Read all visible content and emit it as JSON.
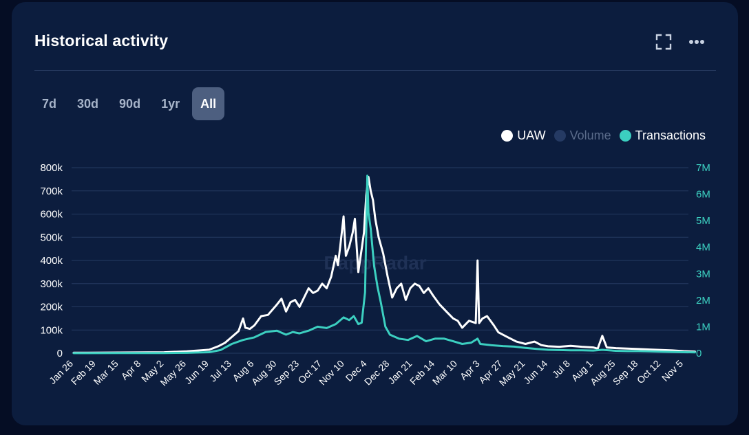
{
  "header": {
    "title": "Historical activity"
  },
  "icons": {
    "expand": "expand-icon",
    "more": "more-options-icon"
  },
  "tabs": [
    {
      "label": "7d",
      "active": false
    },
    {
      "label": "30d",
      "active": false
    },
    {
      "label": "90d",
      "active": false
    },
    {
      "label": "1yr",
      "active": false
    },
    {
      "label": "All",
      "active": true
    }
  ],
  "legend": [
    {
      "label": "UAW",
      "color": "#ffffff",
      "text_color": "#ffffff",
      "active": true
    },
    {
      "label": "Volume",
      "color": "#253a63",
      "text_color": "#5a6b8a",
      "active": false
    },
    {
      "label": "Transactions",
      "color": "#3ccfc0",
      "text_color": "#ffffff",
      "active": true
    }
  ],
  "watermark": "DappRadar",
  "chart_data": {
    "type": "line",
    "x_ticks": [
      "Jan 26",
      "Feb 19",
      "Mar 15",
      "Apr 8",
      "May 2",
      "May 26",
      "Jun 19",
      "Jul 13",
      "Aug 6",
      "Aug 30",
      "Sep 23",
      "Oct 17",
      "Nov 10",
      "Dec 4",
      "Dec 28",
      "Jan 21",
      "Feb 14",
      "Mar 10",
      "Apr 3",
      "Apr 27",
      "May 21",
      "Jun 14",
      "Jul 8",
      "Aug 1",
      "Aug 25",
      "Sep 18",
      "Oct 12",
      "Nov 5"
    ],
    "y_left": {
      "ticks": [
        "0",
        "100k",
        "200k",
        "300k",
        "400k",
        "500k",
        "600k",
        "700k",
        "800k"
      ],
      "range": [
        0,
        800000
      ]
    },
    "y_right": {
      "ticks": [
        "0",
        "1M",
        "2M",
        "3M",
        "4M",
        "5M",
        "6M",
        "7M"
      ],
      "range": [
        0,
        7000000
      ]
    },
    "grid": true,
    "legend_position": "top-right",
    "series": [
      {
        "name": "UAW",
        "axis": "left",
        "color": "#ffffff",
        "points": [
          [
            0,
            2000
          ],
          [
            2,
            3000
          ],
          [
            4,
            4000
          ],
          [
            5,
            8000
          ],
          [
            6,
            15000
          ],
          [
            6.4,
            30000
          ],
          [
            6.7,
            45000
          ],
          [
            7,
            70000
          ],
          [
            7.3,
            95000
          ],
          [
            7.5,
            150000
          ],
          [
            7.6,
            110000
          ],
          [
            7.8,
            105000
          ],
          [
            8,
            120000
          ],
          [
            8.3,
            160000
          ],
          [
            8.6,
            165000
          ],
          [
            9,
            210000
          ],
          [
            9.2,
            235000
          ],
          [
            9.4,
            180000
          ],
          [
            9.6,
            220000
          ],
          [
            9.8,
            230000
          ],
          [
            10,
            200000
          ],
          [
            10.2,
            240000
          ],
          [
            10.4,
            280000
          ],
          [
            10.6,
            260000
          ],
          [
            10.8,
            270000
          ],
          [
            11,
            300000
          ],
          [
            11.2,
            280000
          ],
          [
            11.4,
            330000
          ],
          [
            11.6,
            420000
          ],
          [
            11.7,
            380000
          ],
          [
            11.8,
            460000
          ],
          [
            11.95,
            590000
          ],
          [
            12.05,
            420000
          ],
          [
            12.2,
            460000
          ],
          [
            12.35,
            520000
          ],
          [
            12.45,
            580000
          ],
          [
            12.6,
            350000
          ],
          [
            12.75,
            450000
          ],
          [
            12.85,
            520000
          ],
          [
            12.95,
            680000
          ],
          [
            13.05,
            760000
          ],
          [
            13.15,
            700000
          ],
          [
            13.25,
            660000
          ],
          [
            13.35,
            580000
          ],
          [
            13.5,
            500000
          ],
          [
            13.7,
            430000
          ],
          [
            13.9,
            330000
          ],
          [
            14.1,
            240000
          ],
          [
            14.3,
            280000
          ],
          [
            14.5,
            300000
          ],
          [
            14.7,
            230000
          ],
          [
            14.9,
            280000
          ],
          [
            15.1,
            300000
          ],
          [
            15.3,
            290000
          ],
          [
            15.5,
            260000
          ],
          [
            15.7,
            280000
          ],
          [
            15.9,
            250000
          ],
          [
            16.2,
            210000
          ],
          [
            16.5,
            180000
          ],
          [
            16.8,
            150000
          ],
          [
            17,
            140000
          ],
          [
            17.2,
            110000
          ],
          [
            17.5,
            140000
          ],
          [
            17.8,
            130000
          ],
          [
            17.88,
            400000
          ],
          [
            17.95,
            130000
          ],
          [
            18.1,
            150000
          ],
          [
            18.3,
            160000
          ],
          [
            18.6,
            120000
          ],
          [
            18.8,
            90000
          ],
          [
            19.2,
            70000
          ],
          [
            19.6,
            50000
          ],
          [
            20,
            40000
          ],
          [
            20.4,
            50000
          ],
          [
            20.7,
            35000
          ],
          [
            21,
            30000
          ],
          [
            21.5,
            28000
          ],
          [
            22,
            32000
          ],
          [
            22.5,
            28000
          ],
          [
            23,
            25000
          ],
          [
            23.2,
            20000
          ],
          [
            23.4,
            75000
          ],
          [
            23.6,
            25000
          ],
          [
            24,
            22000
          ],
          [
            24.5,
            20000
          ],
          [
            25,
            18000
          ],
          [
            25.5,
            16000
          ],
          [
            26,
            14000
          ],
          [
            26.5,
            12000
          ],
          [
            27,
            9000
          ],
          [
            27.5,
            7000
          ]
        ]
      },
      {
        "name": "Transactions",
        "axis": "right",
        "color": "#3ccfc0",
        "points": [
          [
            0,
            3000
          ],
          [
            2,
            4000
          ],
          [
            4,
            8000
          ],
          [
            5,
            15000
          ],
          [
            6,
            40000
          ],
          [
            6.5,
            120000
          ],
          [
            7,
            350000
          ],
          [
            7.5,
            500000
          ],
          [
            8,
            600000
          ],
          [
            8.5,
            800000
          ],
          [
            9,
            850000
          ],
          [
            9.4,
            700000
          ],
          [
            9.7,
            800000
          ],
          [
            10,
            750000
          ],
          [
            10.4,
            850000
          ],
          [
            10.8,
            1000000
          ],
          [
            11.2,
            950000
          ],
          [
            11.6,
            1100000
          ],
          [
            11.95,
            1350000
          ],
          [
            12.2,
            1250000
          ],
          [
            12.4,
            1400000
          ],
          [
            12.6,
            1100000
          ],
          [
            12.75,
            1150000
          ],
          [
            12.9,
            2300000
          ],
          [
            13,
            6700000
          ],
          [
            13.05,
            5300000
          ],
          [
            13.15,
            4700000
          ],
          [
            13.3,
            3300000
          ],
          [
            13.45,
            2500000
          ],
          [
            13.6,
            1900000
          ],
          [
            13.8,
            1000000
          ],
          [
            14,
            700000
          ],
          [
            14.4,
            550000
          ],
          [
            14.8,
            500000
          ],
          [
            15.2,
            650000
          ],
          [
            15.6,
            450000
          ],
          [
            16,
            550000
          ],
          [
            16.4,
            550000
          ],
          [
            16.8,
            450000
          ],
          [
            17.2,
            350000
          ],
          [
            17.6,
            400000
          ],
          [
            17.88,
            550000
          ],
          [
            18,
            350000
          ],
          [
            18.5,
            300000
          ],
          [
            19,
            270000
          ],
          [
            19.5,
            250000
          ],
          [
            20,
            200000
          ],
          [
            20.5,
            160000
          ],
          [
            21,
            130000
          ],
          [
            21.5,
            120000
          ],
          [
            22,
            110000
          ],
          [
            22.5,
            110000
          ],
          [
            23,
            100000
          ],
          [
            23.4,
            130000
          ],
          [
            24,
            90000
          ],
          [
            24.5,
            80000
          ],
          [
            25,
            80000
          ],
          [
            25.5,
            70000
          ],
          [
            26,
            60000
          ],
          [
            26.5,
            50000
          ],
          [
            27,
            40000
          ],
          [
            27.5,
            30000
          ]
        ]
      }
    ]
  }
}
